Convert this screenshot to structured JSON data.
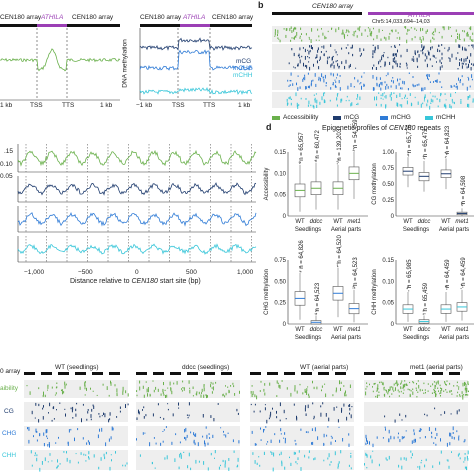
{
  "colors": {
    "accessibility": "#6ab04c",
    "mcg": "#1f3c6e",
    "mchg": "#2f7bd6",
    "mchh": "#38c6d9",
    "athila": "#9b3fb5",
    "grey_track": "#e8e8e8",
    "dashed": "#444444"
  },
  "panel_a": {
    "track_labels": [
      "CEN180 array",
      "ATHILA",
      "CEN180 array"
    ],
    "left_x_ticks": [
      "1 kb",
      "TSS",
      "TTS",
      "1 kb"
    ],
    "right_x_ticks": [
      "−1 kb",
      "TSS",
      "TTS",
      "1 kb"
    ],
    "right_ylabel": "DNA methylation",
    "legend": [
      "mCG",
      "mCHG",
      "mCHH"
    ]
  },
  "panel_b": {
    "letter": "b",
    "track_label": "CEN180 array",
    "athila_label": "ATHILA",
    "coord": "Chr5:14,033,694–14,03",
    "legend": [
      "Accessibility",
      "mCG",
      "mCHG",
      "mCHH"
    ]
  },
  "panel_c": {
    "y_ticks": [
      ".15",
      "0.10",
      "0.05"
    ],
    "y_ticks_lower": [
      "0.15",
      "0.10",
      "0.05"
    ],
    "x_ticks": [
      "−1,000",
      "−500",
      "0",
      "500",
      "1,000"
    ],
    "xlabel_pre": "Distance relative to ",
    "xlabel_em": "CEN180",
    "xlabel_post": " start site (bp)"
  },
  "panel_d": {
    "letter": "d",
    "title_pre": "Epigenetic profiles of ",
    "title_em": "CEN180",
    "title_post": " repeats",
    "groups": [
      "Seedlings",
      "Aerial parts"
    ],
    "genotypes": [
      [
        "WT",
        "ddcc"
      ],
      [
        "WT",
        "met1"
      ]
    ],
    "subplots": [
      {
        "ylabel": "Accessibility",
        "yticks": [
          "0.15",
          "0.10",
          "0.05",
          "0"
        ],
        "ns": [
          "n = 65,957",
          "n = 60,472",
          "n = 139,203",
          "n = 54,459"
        ]
      },
      {
        "ylabel": "CG methylation",
        "yticks": [
          "1.00",
          "0.75",
          "0.50",
          "0.25",
          "0"
        ],
        "ns": [
          "n = 65,776",
          "n = 65,472",
          "n = 64,823",
          "n = 64,598"
        ]
      },
      {
        "ylabel": "CHG methylation",
        "yticks": [
          "0.75",
          "0.50",
          "0.25",
          "0"
        ],
        "ns": [
          "n = 64,826",
          "n = 64,523",
          "n = 64,520",
          "n = 64,523"
        ]
      },
      {
        "ylabel": "CHH methylation",
        "yticks": [
          "0.15",
          "0.10",
          "0.05",
          "0"
        ],
        "ns": [
          "n = 65,985",
          "n = 65,459",
          "n = 64,459",
          "n = 64,459"
        ]
      }
    ]
  },
  "panel_e": {
    "track_label": "0 array",
    "samples": [
      "WT (seedlings)",
      "ddcc (seedlings)",
      "WT (aerial parts)",
      "met1 (aerial parts)"
    ],
    "row_labels": [
      "aibility",
      "CG",
      "CHG",
      "CHH"
    ]
  },
  "chart_data": [
    {
      "type": "line",
      "panel": "a-left",
      "series": [
        {
          "color": "#6ab04c",
          "x": [
            -1000,
            -500,
            -100,
            0,
            200,
            500,
            800,
            1000,
            1500,
            2000,
            2500
          ],
          "values": [
            0.06,
            0.055,
            0.05,
            0.045,
            0.06,
            0.09,
            0.06,
            0.05,
            0.05,
            0.052,
            0.05
          ]
        }
      ],
      "x_ticks": [
        "1 kb",
        "TSS",
        "TTS",
        "1 kb"
      ]
    },
    {
      "type": "line",
      "panel": "a-right",
      "ylabel": "DNA methylation",
      "series": [
        {
          "name": "mCG",
          "color": "#1f3c6e",
          "values": [
            0.8,
            0.82,
            0.78,
            0.9,
            0.92,
            0.9,
            0.8,
            0.78,
            0.76
          ]
        },
        {
          "name": "mCHG",
          "color": "#2f7bd6",
          "values": [
            0.45,
            0.48,
            0.42,
            0.7,
            0.72,
            0.7,
            0.5,
            0.45,
            0.5
          ]
        },
        {
          "name": "mCHH",
          "color": "#38c6d9",
          "values": [
            0.08,
            0.07,
            0.08,
            0.1,
            0.1,
            0.1,
            0.08,
            0.07,
            0.08
          ]
        }
      ],
      "x_ticks": [
        "−1 kb",
        "TSS",
        "TTS",
        "1 kb"
      ]
    },
    {
      "type": "line",
      "panel": "c",
      "xlabel": "Distance relative to CEN180 start site (bp)",
      "x_range": [
        -1100,
        1100
      ],
      "series": [
        {
          "color": "#6ab04c",
          "period": 178,
          "baseline": 0.08,
          "amplitude": 0.05
        },
        {
          "color": "#1f3c6e",
          "period": 178,
          "baseline": 0.8,
          "amplitude": 0.08
        },
        {
          "color": "#2f7bd6",
          "period": 178,
          "baseline": 0.5,
          "amplitude": 0.1
        },
        {
          "color": "#38c6d9",
          "period": 178,
          "baseline": 0.06,
          "amplitude": 0.02
        }
      ],
      "x_ticks": [
        "−1,000",
        "−500",
        "0",
        "500",
        "1,000"
      ]
    },
    {
      "type": "box",
      "panel": "d",
      "subplots": [
        {
          "ylabel": "Accessibility",
          "ylim": [
            0,
            0.15
          ],
          "boxes": [
            {
              "q1": 0.045,
              "median": 0.06,
              "q3": 0.075,
              "lo": 0.01,
              "hi": 0.12
            },
            {
              "q1": 0.05,
              "median": 0.065,
              "q3": 0.08,
              "lo": 0.015,
              "hi": 0.125
            },
            {
              "q1": 0.05,
              "median": 0.065,
              "q3": 0.08,
              "lo": 0.015,
              "hi": 0.12
            },
            {
              "q1": 0.085,
              "median": 0.1,
              "q3": 0.115,
              "lo": 0.04,
              "hi": 0.15
            }
          ]
        },
        {
          "ylabel": "CG methylation",
          "ylim": [
            0,
            1.0
          ],
          "boxes": [
            {
              "q1": 0.64,
              "median": 0.7,
              "q3": 0.76,
              "lo": 0.45,
              "hi": 0.92
            },
            {
              "q1": 0.55,
              "median": 0.62,
              "q3": 0.68,
              "lo": 0.38,
              "hi": 0.86
            },
            {
              "q1": 0.6,
              "median": 0.66,
              "q3": 0.72,
              "lo": 0.42,
              "hi": 0.9
            },
            {
              "q1": 0.02,
              "median": 0.04,
              "q3": 0.06,
              "lo": 0.0,
              "hi": 0.12
            }
          ]
        },
        {
          "ylabel": "CHG methylation",
          "ylim": [
            0,
            0.75
          ],
          "boxes": [
            {
              "q1": 0.22,
              "median": 0.3,
              "q3": 0.38,
              "lo": 0.05,
              "hi": 0.6
            },
            {
              "q1": 0.0,
              "median": 0.02,
              "q3": 0.04,
              "lo": 0.0,
              "hi": 0.1
            },
            {
              "q1": 0.28,
              "median": 0.36,
              "q3": 0.44,
              "lo": 0.08,
              "hi": 0.66
            },
            {
              "q1": 0.12,
              "median": 0.18,
              "q3": 0.24,
              "lo": 0.02,
              "hi": 0.4
            }
          ]
        },
        {
          "ylabel": "CHH methylation",
          "ylim": [
            0,
            0.15
          ],
          "boxes": [
            {
              "q1": 0.025,
              "median": 0.035,
              "q3": 0.045,
              "lo": 0.005,
              "hi": 0.075
            },
            {
              "q1": 0.002,
              "median": 0.006,
              "q3": 0.01,
              "lo": 0.0,
              "hi": 0.02
            },
            {
              "q1": 0.025,
              "median": 0.035,
              "q3": 0.045,
              "lo": 0.005,
              "hi": 0.075
            },
            {
              "q1": 0.03,
              "median": 0.04,
              "q3": 0.05,
              "lo": 0.008,
              "hi": 0.08
            }
          ]
        }
      ]
    }
  ]
}
